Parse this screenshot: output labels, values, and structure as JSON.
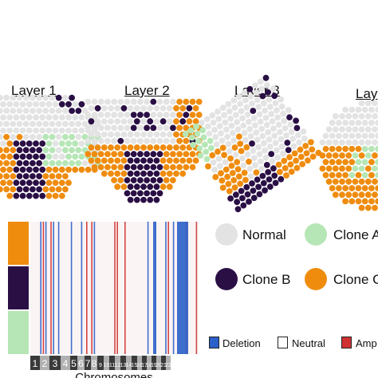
{
  "layers": [
    {
      "title": "Layer 1"
    },
    {
      "title": "Layer 2"
    },
    {
      "title": "Layer 3"
    },
    {
      "title": "Lay"
    }
  ],
  "clone_legend": [
    {
      "label": "Normal",
      "color": "#e3e3e3"
    },
    {
      "label": "Clone A",
      "color": "#b6e6b6"
    },
    {
      "label": "Clone B",
      "color": "#2a0f45"
    },
    {
      "label": "Clone C",
      "color": "#ef8c0e"
    }
  ],
  "cnv_legend": [
    {
      "label": "Deletion",
      "color": "#2b5fc9"
    },
    {
      "label": "Neutral",
      "color": "#ffffff"
    },
    {
      "label": "Amp",
      "color": "#cf3232"
    }
  ],
  "heatmap": {
    "row_groups": [
      {
        "clone": "Clone C",
        "color": "#ef8c0e"
      },
      {
        "clone": "Clone B",
        "color": "#2a0f45"
      },
      {
        "clone": "Clone A",
        "color": "#b6e6b6"
      }
    ],
    "chromosome_labels": [
      "1",
      "2",
      "3",
      "4",
      "5",
      "6",
      "7",
      "8",
      "9",
      "10",
      "11",
      "12",
      "13",
      "14",
      "15",
      "16",
      "17",
      "18",
      "19",
      "20",
      "21",
      "22"
    ],
    "xlabel": "Chromosomes"
  }
}
